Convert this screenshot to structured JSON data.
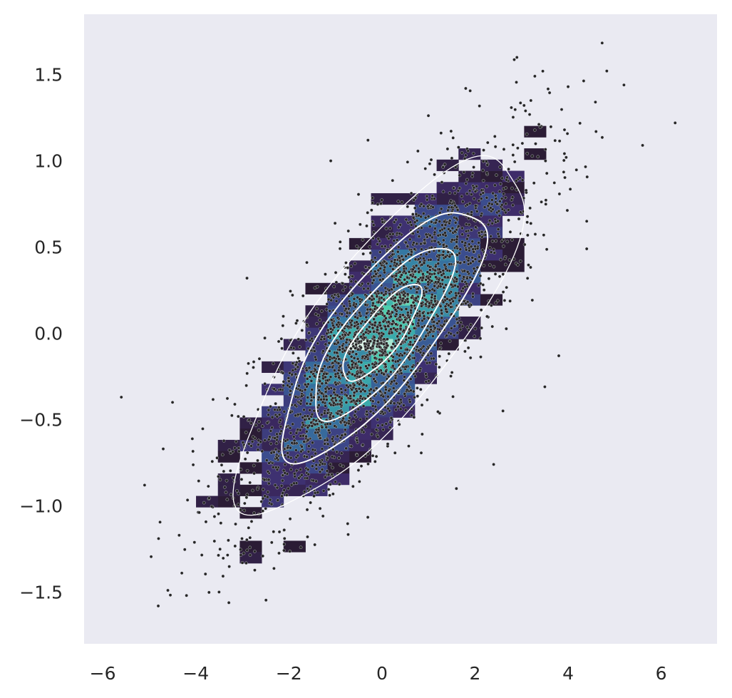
{
  "chart_data": {
    "type": "heatmap",
    "subtype": "bivariate histogram with scatter and density contours",
    "title": "",
    "xlabel": "",
    "ylabel": "",
    "xlim": [
      -6.4,
      7.2
    ],
    "ylim": [
      -1.8,
      1.85
    ],
    "xticks": [
      {
        "value": -6,
        "label": "−6"
      },
      {
        "value": -4,
        "label": "−4"
      },
      {
        "value": -2,
        "label": "−2"
      },
      {
        "value": 0,
        "label": "0"
      },
      {
        "value": 2,
        "label": "2"
      },
      {
        "value": 4,
        "label": "4"
      },
      {
        "value": 6,
        "label": "6"
      }
    ],
    "yticks": [
      {
        "value": -1.5,
        "label": "−1.5"
      },
      {
        "value": -1.0,
        "label": "−1.0"
      },
      {
        "value": -0.5,
        "label": "−0.5"
      },
      {
        "value": 0.0,
        "label": "0.0"
      },
      {
        "value": 0.5,
        "label": "0.5"
      },
      {
        "value": 1.0,
        "label": "1.0"
      },
      {
        "value": 1.5,
        "label": "1.5"
      }
    ],
    "grid": false,
    "legend": "none",
    "distribution": {
      "mean": [
        0.0,
        0.0
      ],
      "std": [
        1.5,
        0.5
      ],
      "correlation": 0.8,
      "n_points": 3000
    },
    "histogram": {
      "x_bin_width": 0.47,
      "y_bin_width": 0.065,
      "colormap": "mako",
      "color_stops": [
        "#2b1c35",
        "#3f2c6b",
        "#3b4c8e",
        "#357ba3",
        "#39a8ab",
        "#4dcfad",
        "#dcf5e6"
      ]
    },
    "contours": {
      "color": "#ffffff",
      "levels": [
        {
          "sigma": 0.56
        },
        {
          "sigma": 1.0
        },
        {
          "sigma": 1.45
        },
        {
          "sigma": 2.05
        }
      ]
    },
    "scatter": {
      "color": "#262626",
      "sample_points": [
        [
          -5.6,
          -0.37
        ],
        [
          -5.1,
          -0.88
        ],
        [
          -4.8,
          -1.19
        ],
        [
          -4.7,
          -0.67
        ],
        [
          -4.6,
          -1.49
        ],
        [
          -4.2,
          -1.52
        ],
        [
          -4.3,
          -1.39
        ],
        [
          -4.5,
          -0.4
        ],
        [
          -3.5,
          -1.5
        ],
        [
          -3.3,
          -1.2
        ],
        [
          -3.0,
          -1.33
        ],
        [
          2.9,
          1.6
        ],
        [
          4.0,
          1.43
        ],
        [
          5.2,
          1.44
        ],
        [
          6.3,
          1.22
        ],
        [
          4.6,
          1.17
        ],
        [
          4.4,
          0.65
        ],
        [
          4.4,
          0.49
        ],
        [
          3.8,
          -0.13
        ],
        [
          3.5,
          -0.31
        ],
        [
          1.6,
          -0.9
        ],
        [
          2.4,
          -0.76
        ],
        [
          -2.1,
          -1.14
        ],
        [
          -3.4,
          -0.8
        ],
        [
          3.2,
          1.35
        ],
        [
          1.8,
          1.42
        ],
        [
          -1.1,
          1.0
        ],
        [
          -0.3,
          1.12
        ],
        [
          2.6,
          -0.45
        ],
        [
          -2.9,
          0.32
        ]
      ]
    }
  }
}
